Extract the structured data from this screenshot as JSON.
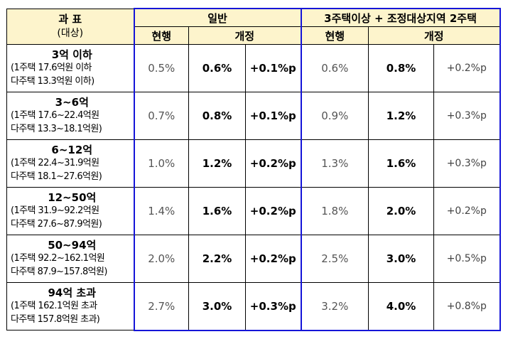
{
  "header": {
    "category_title": "과  표",
    "category_sub": "(대상)",
    "group_general": "일반",
    "group_multi": "3주택이상 + 조정대상지역 2주택",
    "col_current": "현행",
    "col_revised": "개정"
  },
  "rows": [
    {
      "title": "3억 이하",
      "line1": "(1주택 17.6억원 이하",
      "line2": "다주택 13.3억원 이하)",
      "gen_current": "0.5%",
      "gen_revised": "0.6%",
      "gen_increase": "+0.1%p",
      "multi_current": "0.6%",
      "multi_revised": "0.8%",
      "multi_increase": "+0.2%p"
    },
    {
      "title": "3~6억",
      "line1": "(1주택 17.6~22.4억원",
      "line2": "다주택 13.3~18.1억원)",
      "gen_current": "0.7%",
      "gen_revised": "0.8%",
      "gen_increase": "+0.1%p",
      "multi_current": "0.9%",
      "multi_revised": "1.2%",
      "multi_increase": "+0.3%p"
    },
    {
      "title": "6~12억",
      "line1": "(1주택 22.4~31.9억원",
      "line2": "다주택 18.1~27.6억원)",
      "gen_current": "1.0%",
      "gen_revised": "1.2%",
      "gen_increase": "+0.2%p",
      "multi_current": "1.3%",
      "multi_revised": "1.6%",
      "multi_increase": "+0.3%p"
    },
    {
      "title": "12~50억",
      "line1": "(1주택 31.9~92.2억원",
      "line2": "다주택 27.6~87.9억원)",
      "gen_current": "1.4%",
      "gen_revised": "1.6%",
      "gen_increase": "+0.2%p",
      "multi_current": "1.8%",
      "multi_revised": "2.0%",
      "multi_increase": "+0.2%p"
    },
    {
      "title": "50~94억",
      "line1": "(1주택 92.2~162.1억원",
      "line2": "다주택 87.9~157.8억원)",
      "gen_current": "2.0%",
      "gen_revised": "2.2%",
      "gen_increase": "+0.2%p",
      "multi_current": "2.5%",
      "multi_revised": "3.0%",
      "multi_increase": "+0.5%p"
    },
    {
      "title": "94억 초과",
      "line1": "(1주택 162.1억원 초과",
      "line2": "다주택 157.8억원 초과)",
      "gen_current": "2.7%",
      "gen_revised": "3.0%",
      "gen_increase": "+0.3%p",
      "multi_current": "3.2%",
      "multi_revised": "4.0%",
      "multi_increase": "+0.8%p"
    }
  ]
}
